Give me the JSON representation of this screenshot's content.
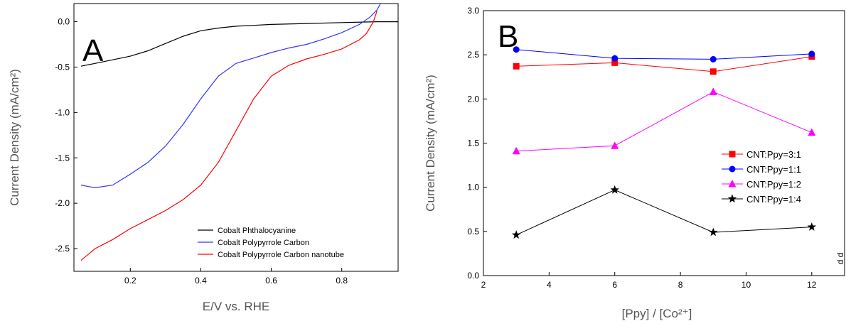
{
  "chart_data": [
    {
      "type": "line",
      "panel_label": "A",
      "xlabel": "E/V vs. RHE",
      "ylabel": "Current Density (mA/cm²)",
      "xlim": [
        0.04,
        0.96
      ],
      "ylim": [
        -2.75,
        0.2
      ],
      "xticks": [
        0.2,
        0.4,
        0.6,
        0.8
      ],
      "yticks": [
        0.0,
        -0.5,
        -1.0,
        -1.5,
        -2.0,
        -2.5
      ],
      "xtick_labels": [
        "0.2",
        "0.4",
        "0.6",
        "0.8"
      ],
      "ytick_labels": [
        "0.0",
        "-0.5",
        "-1.0",
        "-1.5",
        "-2.0",
        "-2.5"
      ],
      "legend_position": "bottom-right",
      "series": [
        {
          "name": "Cobalt Phthalocyanine",
          "color": "#000000",
          "x": [
            0.06,
            0.1,
            0.15,
            0.2,
            0.25,
            0.3,
            0.35,
            0.4,
            0.45,
            0.5,
            0.55,
            0.6,
            0.7,
            0.8,
            0.9,
            0.96
          ],
          "y": [
            -0.49,
            -0.46,
            -0.42,
            -0.38,
            -0.32,
            -0.24,
            -0.16,
            -0.1,
            -0.07,
            -0.05,
            -0.04,
            -0.03,
            -0.02,
            -0.01,
            0.0,
            0.0
          ]
        },
        {
          "name": "Cobalt Polypyrrole Carbon",
          "color": "#3333ff",
          "x": [
            0.06,
            0.1,
            0.15,
            0.2,
            0.25,
            0.3,
            0.35,
            0.4,
            0.45,
            0.5,
            0.55,
            0.6,
            0.65,
            0.7,
            0.75,
            0.8,
            0.85,
            0.88,
            0.9,
            0.91
          ],
          "y": [
            -1.8,
            -1.83,
            -1.8,
            -1.68,
            -1.55,
            -1.37,
            -1.13,
            -0.85,
            -0.6,
            -0.46,
            -0.4,
            -0.34,
            -0.29,
            -0.25,
            -0.19,
            -0.12,
            -0.03,
            0.05,
            0.13,
            0.2
          ]
        },
        {
          "name": "Cobalt Polypyrrole Carbon nanotube",
          "color": "#ff0000",
          "x": [
            0.06,
            0.1,
            0.15,
            0.2,
            0.25,
            0.3,
            0.35,
            0.4,
            0.45,
            0.5,
            0.55,
            0.6,
            0.65,
            0.7,
            0.75,
            0.8,
            0.85,
            0.87,
            0.89,
            0.9
          ],
          "y": [
            -2.63,
            -2.5,
            -2.4,
            -2.28,
            -2.18,
            -2.08,
            -1.96,
            -1.8,
            -1.55,
            -1.2,
            -0.85,
            -0.6,
            -0.48,
            -0.41,
            -0.36,
            -0.3,
            -0.2,
            -0.13,
            0.0,
            0.12
          ]
        }
      ]
    },
    {
      "type": "line",
      "panel_label": "B",
      "xlabel": "[Ppy] / [Co²⁺]",
      "ylabel": "Current Density (mA/cm²)",
      "xlim": [
        2,
        13
      ],
      "ylim": [
        0.0,
        3.0
      ],
      "xticks": [
        2,
        4,
        6,
        8,
        10,
        12
      ],
      "yticks": [
        0.0,
        0.5,
        1.0,
        1.5,
        2.0,
        2.5,
        3.0
      ],
      "xtick_labels": [
        "2",
        "4",
        "6",
        "8",
        "10",
        "12"
      ],
      "ytick_labels": [
        "0.0",
        "0.5",
        "1.0",
        "1.5",
        "2.0",
        "2.5",
        "3.0"
      ],
      "legend_position": "right",
      "categories": [
        3,
        6,
        9,
        12
      ],
      "series": [
        {
          "name": "CNT:Ppy=3:1",
          "color": "#ff0000",
          "marker": "square",
          "values": [
            2.37,
            2.41,
            2.31,
            2.48
          ]
        },
        {
          "name": "CNT:Ppy=1:1",
          "color": "#0000ff",
          "marker": "circle",
          "values": [
            2.56,
            2.46,
            2.45,
            2.51
          ]
        },
        {
          "name": "CNT:Ppy=1:2",
          "color": "#ff00ff",
          "marker": "triangle",
          "values": [
            1.41,
            1.47,
            2.08,
            1.62
          ]
        },
        {
          "name": "CNT:Ppy=1:4",
          "color": "#000000",
          "marker": "star",
          "values": [
            0.46,
            0.97,
            0.49,
            0.55
          ]
        }
      ],
      "edge_text": "d d"
    }
  ]
}
